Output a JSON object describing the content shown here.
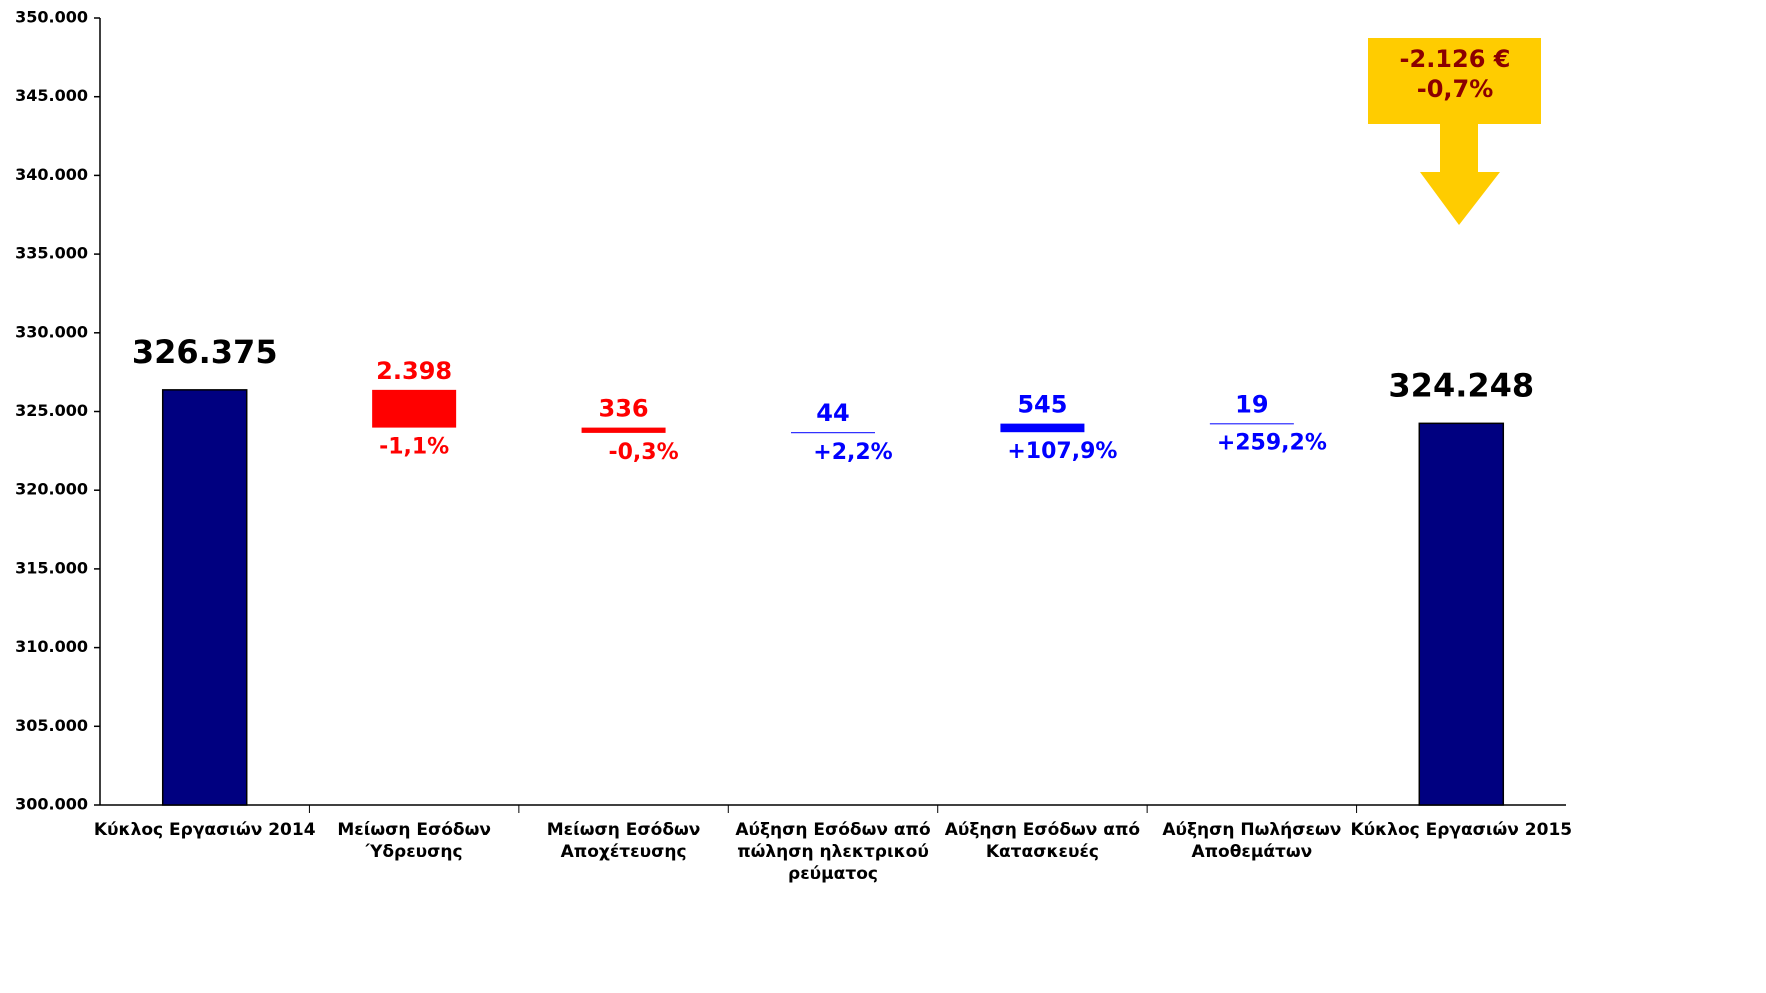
{
  "chart_data": {
    "type": "waterfall",
    "categories": [
      [
        "Κύκλος Εργασιών 2014"
      ],
      [
        "Μείωση Εσόδων",
        "Ύδρευσης"
      ],
      [
        "Μείωση Εσόδων",
        "Αποχέτευσης"
      ],
      [
        "Αύξηση Εσόδων από",
        "πώληση ηλεκτρικού",
        "ρεύματος"
      ],
      [
        "Αύξηση Εσόδων  από",
        "Κατασκευές"
      ],
      [
        "Αύξηση Πωλήσεων",
        "Αποθεμάτων"
      ],
      [
        "Κύκλος Εργασιών 2015"
      ]
    ],
    "values": [
      326375,
      -2398,
      -336,
      44,
      545,
      19,
      324248
    ],
    "value_labels": [
      "326.375",
      "2.398",
      "336",
      "44",
      "545",
      "19",
      "324.248"
    ],
    "measure": [
      "absolute",
      "relative",
      "relative",
      "relative",
      "relative",
      "relative",
      "absolute"
    ],
    "change_labels": [
      null,
      "-1,1%",
      "-0,3%",
      "+2,2%",
      "+107,9%",
      "+259,2%",
      null
    ],
    "colors": [
      "#000080",
      "#ff0000",
      "#ff0000",
      "#0000ff",
      "#0000ff",
      "#0000ff",
      "#000080"
    ],
    "label_colors": [
      "#000000",
      "#ff0000",
      "#ff0000",
      "#0000ff",
      "#0000ff",
      "#0000ff",
      "#000000"
    ],
    "ylim": [
      300000,
      350000
    ],
    "yticks": [
      {
        "value": 300000,
        "label": "300.000"
      },
      {
        "value": 305000,
        "label": "305.000"
      },
      {
        "value": 310000,
        "label": "310.000"
      },
      {
        "value": 315000,
        "label": "315.000"
      },
      {
        "value": 320000,
        "label": "320.000"
      },
      {
        "value": 325000,
        "label": "325.000"
      },
      {
        "value": 330000,
        "label": "330.000"
      },
      {
        "value": 335000,
        "label": "335.000"
      },
      {
        "value": 340000,
        "label": "340.000"
      },
      {
        "value": 345000,
        "label": "345.000"
      },
      {
        "value": 350000,
        "label": "350.000"
      }
    ],
    "callout": {
      "lines": [
        "-2.126 €",
        "-0,7%"
      ],
      "color": "#ffcc00",
      "text_color": "#8b0000"
    }
  }
}
